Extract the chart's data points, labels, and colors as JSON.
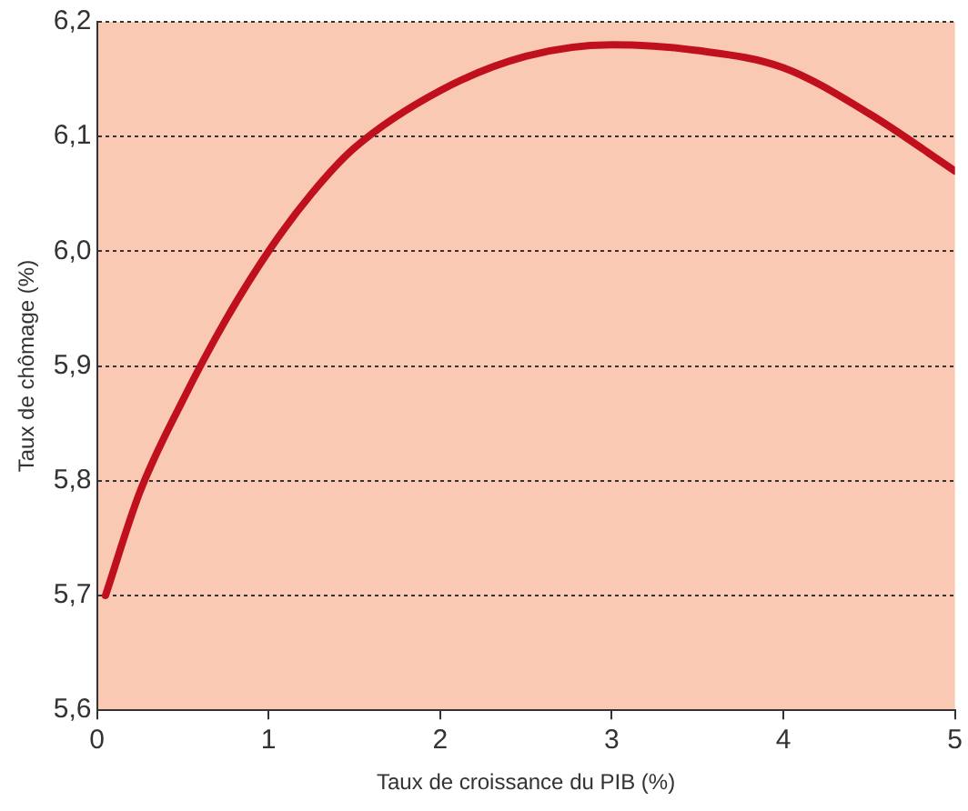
{
  "chart_data": {
    "type": "line",
    "xlabel": "Taux de croissance du PIB (%)",
    "ylabel": "Taux de chômage (%)",
    "x": [
      0.05,
      0.25,
      0.5,
      0.75,
      1.0,
      1.25,
      1.5,
      2.0,
      2.5,
      3.0,
      3.5,
      4.0,
      4.5,
      5.0
    ],
    "series": [
      {
        "color": "#c0101e",
        "values": [
          5.7,
          5.79,
          5.87,
          5.94,
          6.0,
          6.05,
          6.09,
          6.14,
          6.17,
          6.18,
          6.175,
          6.16,
          6.12,
          6.07
        ]
      }
    ],
    "xlim": [
      0,
      5
    ],
    "xticks": [
      0,
      1,
      2,
      3,
      4,
      5
    ],
    "ylim": [
      5.6,
      6.2
    ],
    "yticks": [
      {
        "value": 5.6,
        "label": "5,6"
      },
      {
        "value": 5.7,
        "label": "5,7"
      },
      {
        "value": 5.8,
        "label": "5,8"
      },
      {
        "value": 5.9,
        "label": "5,9"
      },
      {
        "value": 6.0,
        "label": "6,0"
      },
      {
        "value": 6.1,
        "label": "6,1"
      },
      {
        "value": 6.2,
        "label": "6,2"
      }
    ],
    "grid": "y",
    "marker": "none",
    "line_style": "solid",
    "legend": false
  }
}
